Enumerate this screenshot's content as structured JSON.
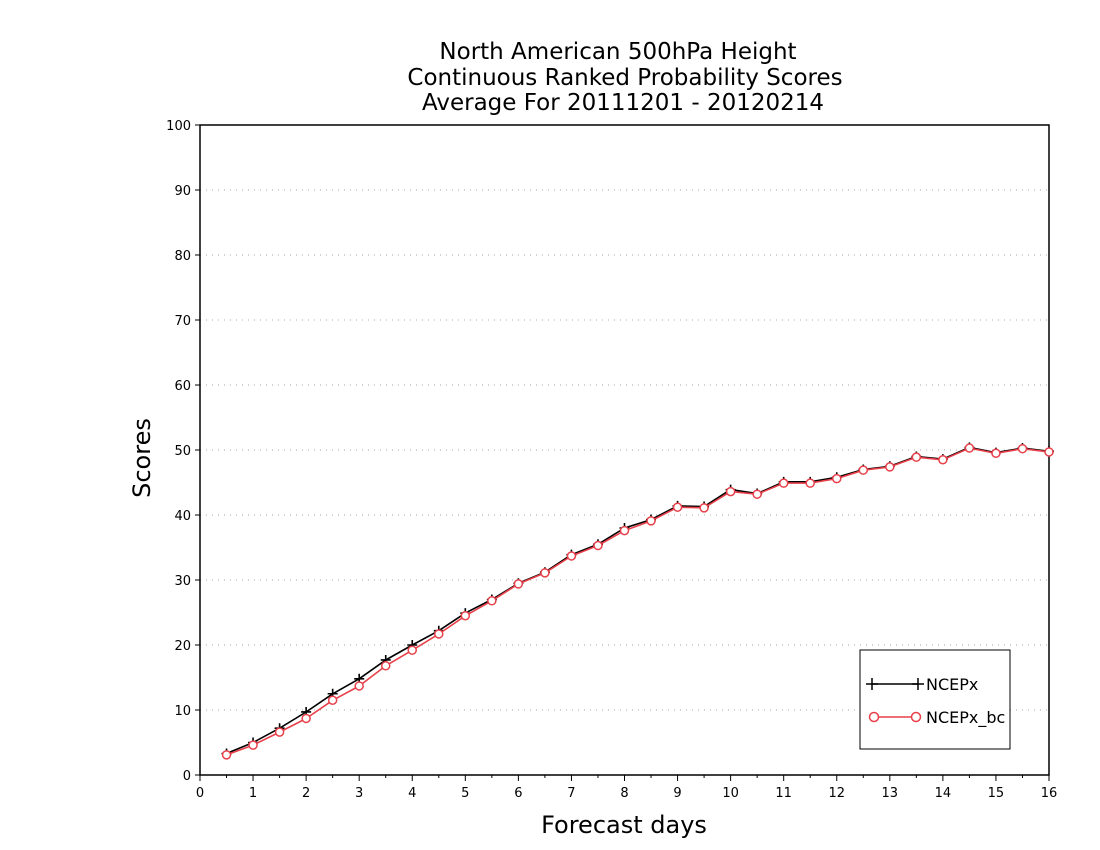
{
  "chart_data": {
    "type": "line",
    "title_lines": [
      "North American 500hPa Height",
      "Continuous Ranked Probability Scores",
      "Average For 20111201 - 20120214"
    ],
    "xlabel": "Forecast days",
    "ylabel": "Scores",
    "xlim": [
      0,
      16
    ],
    "ylim": [
      0,
      100
    ],
    "x_ticks": [
      0,
      1,
      2,
      3,
      4,
      5,
      6,
      7,
      8,
      9,
      10,
      11,
      12,
      13,
      14,
      15,
      16
    ],
    "y_ticks": [
      0,
      10,
      20,
      30,
      40,
      50,
      60,
      70,
      80,
      90,
      100
    ],
    "grid": "horizontal dotted",
    "legend_position": "bottom-right",
    "x": [
      0.5,
      1,
      1.5,
      2,
      2.5,
      3,
      3.5,
      4,
      4.5,
      5,
      5.5,
      6,
      6.5,
      7,
      7.5,
      8,
      8.5,
      9,
      9.5,
      10,
      10.5,
      11,
      11.5,
      12,
      12.5,
      13,
      13.5,
      14,
      14.5,
      15,
      15.5,
      16
    ],
    "series": [
      {
        "name": "NCEPx",
        "color": "#000000",
        "marker": "plus",
        "values": [
          3.3,
          5.0,
          7.2,
          9.7,
          12.5,
          14.8,
          17.7,
          20.0,
          22.2,
          24.9,
          27.0,
          29.5,
          31.2,
          33.9,
          35.5,
          38.0,
          39.3,
          41.4,
          41.3,
          43.9,
          43.3,
          45.1,
          45.1,
          45.8,
          47.0,
          47.5,
          49.0,
          48.6,
          50.4,
          49.6,
          50.3,
          49.8
        ]
      },
      {
        "name": "NCEPx_bc",
        "color": "#e8404a",
        "marker": "circle",
        "values": [
          3.1,
          4.6,
          6.6,
          8.7,
          11.5,
          13.7,
          16.8,
          19.2,
          21.7,
          24.5,
          26.8,
          29.4,
          31.1,
          33.7,
          35.3,
          37.6,
          39.1,
          41.2,
          41.1,
          43.6,
          43.2,
          44.9,
          44.9,
          45.6,
          46.9,
          47.4,
          48.9,
          48.5,
          50.3,
          49.5,
          50.2,
          49.7
        ]
      }
    ]
  }
}
